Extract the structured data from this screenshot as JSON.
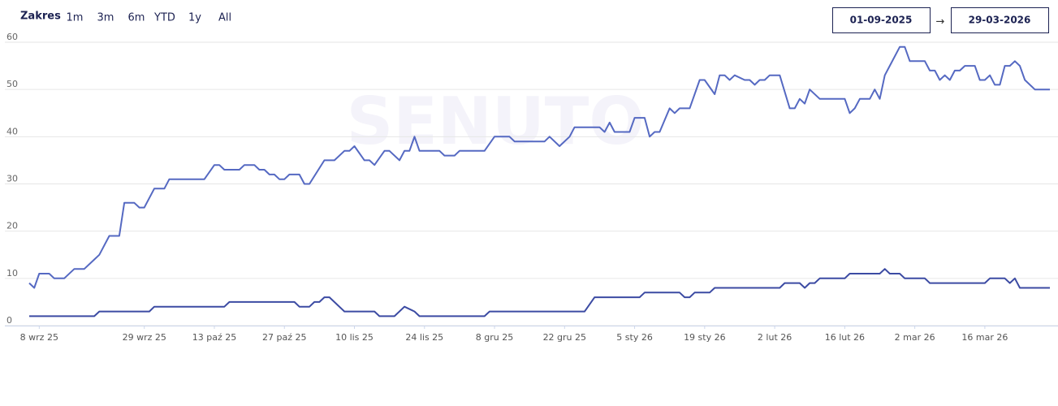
{
  "range_selector": {
    "label": "Zakres",
    "buttons": [
      "1m",
      "3m",
      "6m",
      "YTD",
      "1y",
      "All"
    ],
    "from": "01-09-2025",
    "separator": "→",
    "to": "29-03-2026"
  },
  "chart_data": {
    "type": "line",
    "watermark": "SENUTO",
    "grid": true,
    "xlim": [
      "2025-09-06",
      "2026-03-29"
    ],
    "xticks": [
      {
        "value": "2025-09-08",
        "label": "8 wrz 25"
      },
      {
        "value": "2025-09-29",
        "label": "29 wrz 25"
      },
      {
        "value": "2025-10-13",
        "label": "13 paź 25"
      },
      {
        "value": "2025-10-27",
        "label": "27 paź 25"
      },
      {
        "value": "2025-11-10",
        "label": "10 lis 25"
      },
      {
        "value": "2025-11-24",
        "label": "24 lis 25"
      },
      {
        "value": "2025-12-08",
        "label": "8 gru 25"
      },
      {
        "value": "2025-12-22",
        "label": "22 gru 25"
      },
      {
        "value": "2026-01-05",
        "label": "5 sty 26"
      },
      {
        "value": "2026-01-19",
        "label": "19 sty 26"
      },
      {
        "value": "2026-02-02",
        "label": "2 lut 26"
      },
      {
        "value": "2026-02-16",
        "label": "16 lut 26"
      },
      {
        "value": "2026-03-02",
        "label": "2 mar 26"
      },
      {
        "value": "2026-03-16",
        "label": "16 mar 26"
      }
    ],
    "ylim": [
      0,
      60
    ],
    "yticks": [
      0,
      10,
      20,
      30,
      40,
      50,
      60
    ],
    "series": [
      {
        "color": "#5569c2",
        "x": [
          "2025-09-06",
          "2025-09-07",
          "2025-09-08",
          "2025-09-10",
          "2025-09-11",
          "2025-09-13",
          "2025-09-15",
          "2025-09-17",
          "2025-09-19",
          "2025-09-20",
          "2025-09-22",
          "2025-09-24",
          "2025-09-25",
          "2025-09-27",
          "2025-09-28",
          "2025-09-29",
          "2025-10-01",
          "2025-10-03",
          "2025-10-04",
          "2025-10-11",
          "2025-10-13",
          "2025-10-14",
          "2025-10-15",
          "2025-10-18",
          "2025-10-19",
          "2025-10-21",
          "2025-10-22",
          "2025-10-23",
          "2025-10-24",
          "2025-10-25",
          "2025-10-26",
          "2025-10-27",
          "2025-10-28",
          "2025-10-30",
          "2025-10-31",
          "2025-11-01",
          "2025-11-04",
          "2025-11-06",
          "2025-11-08",
          "2025-11-09",
          "2025-11-10",
          "2025-11-12",
          "2025-11-13",
          "2025-11-14",
          "2025-11-16",
          "2025-11-17",
          "2025-11-19",
          "2025-11-20",
          "2025-11-21",
          "2025-11-22",
          "2025-11-23",
          "2025-11-27",
          "2025-11-28",
          "2025-11-30",
          "2025-12-01",
          "2025-12-06",
          "2025-12-08",
          "2025-12-11",
          "2025-12-12",
          "2025-12-18",
          "2025-12-19",
          "2025-12-21",
          "2025-12-23",
          "2025-12-24",
          "2025-12-29",
          "2025-12-30",
          "2025-12-31",
          "2026-01-01",
          "2026-01-04",
          "2026-01-05",
          "2026-01-07",
          "2026-01-08",
          "2026-01-09",
          "2026-01-10",
          "2026-01-12",
          "2026-01-13",
          "2026-01-14",
          "2026-01-16",
          "2026-01-18",
          "2026-01-19",
          "2026-01-21",
          "2026-01-22",
          "2026-01-23",
          "2026-01-24",
          "2026-01-25",
          "2026-01-27",
          "2026-01-28",
          "2026-01-29",
          "2026-01-30",
          "2026-01-31",
          "2026-02-01",
          "2026-02-03",
          "2026-02-05",
          "2026-02-06",
          "2026-02-07",
          "2026-02-08",
          "2026-02-09",
          "2026-02-11",
          "2026-02-16",
          "2026-02-17",
          "2026-02-18",
          "2026-02-19",
          "2026-02-21",
          "2026-02-22",
          "2026-02-23",
          "2026-02-24",
          "2026-02-25",
          "2026-02-27",
          "2026-02-28",
          "2026-03-01",
          "2026-03-04",
          "2026-03-05",
          "2026-03-06",
          "2026-03-07",
          "2026-03-08",
          "2026-03-09",
          "2026-03-10",
          "2026-03-11",
          "2026-03-12",
          "2026-03-14",
          "2026-03-15",
          "2026-03-16",
          "2026-03-17",
          "2026-03-18",
          "2026-03-19",
          "2026-03-20",
          "2026-03-21",
          "2026-03-22",
          "2026-03-23",
          "2026-03-24",
          "2026-03-26",
          "2026-03-29"
        ],
        "values": [
          9,
          8,
          11,
          11,
          10,
          10,
          12,
          12,
          14,
          15,
          19,
          19,
          26,
          26,
          25,
          25,
          29,
          29,
          31,
          31,
          34,
          34,
          33,
          33,
          34,
          34,
          33,
          33,
          32,
          32,
          31,
          31,
          32,
          32,
          30,
          30,
          35,
          35,
          37,
          37,
          38,
          35,
          35,
          34,
          37,
          37,
          35,
          37,
          37,
          40,
          37,
          37,
          36,
          36,
          37,
          37,
          40,
          40,
          39,
          39,
          40,
          38,
          40,
          42,
          42,
          41,
          43,
          41,
          41,
          44,
          44,
          40,
          41,
          41,
          46,
          45,
          46,
          46,
          52,
          52,
          49,
          53,
          53,
          52,
          53,
          52,
          52,
          51,
          52,
          52,
          53,
          53,
          46,
          46,
          48,
          47,
          50,
          48,
          48,
          45,
          46,
          48,
          48,
          50,
          48,
          53,
          55,
          59,
          59,
          56,
          56,
          54,
          54,
          52,
          53,
          52,
          54,
          54,
          55,
          55,
          52,
          52,
          53,
          51,
          51,
          55,
          55,
          56,
          55,
          52,
          50,
          50
        ]
      },
      {
        "color": "#3c4ba3",
        "x": [
          "2025-09-06",
          "2025-09-19",
          "2025-09-20",
          "2025-09-30",
          "2025-10-01",
          "2025-10-15",
          "2025-10-16",
          "2025-10-29",
          "2025-10-30",
          "2025-11-01",
          "2025-11-02",
          "2025-11-03",
          "2025-11-04",
          "2025-11-05",
          "2025-11-08",
          "2025-11-14",
          "2025-11-15",
          "2025-11-18",
          "2025-11-20",
          "2025-11-22",
          "2025-11-23",
          "2025-12-06",
          "2025-12-07",
          "2025-12-26",
          "2025-12-28",
          "2026-01-06",
          "2026-01-07",
          "2026-01-14",
          "2026-01-15",
          "2026-01-16",
          "2026-01-17",
          "2026-01-20",
          "2026-01-21",
          "2026-02-03",
          "2026-02-04",
          "2026-02-07",
          "2026-02-08",
          "2026-02-09",
          "2026-02-10",
          "2026-02-11",
          "2026-02-16",
          "2026-02-17",
          "2026-02-23",
          "2026-02-24",
          "2026-02-25",
          "2026-02-27",
          "2026-02-28",
          "2026-03-04",
          "2026-03-05",
          "2026-03-16",
          "2026-03-17",
          "2026-03-20",
          "2026-03-21",
          "2026-03-22",
          "2026-03-23",
          "2026-03-29"
        ],
        "values": [
          2,
          2,
          3,
          3,
          4,
          4,
          5,
          5,
          4,
          4,
          5,
          5,
          6,
          6,
          3,
          3,
          2,
          2,
          4,
          3,
          2,
          2,
          3,
          3,
          6,
          6,
          7,
          7,
          6,
          6,
          7,
          7,
          8,
          8,
          9,
          9,
          8,
          9,
          9,
          10,
          10,
          11,
          11,
          12,
          11,
          11,
          10,
          10,
          9,
          9,
          10,
          10,
          9,
          10,
          8,
          8
        ]
      }
    ]
  }
}
